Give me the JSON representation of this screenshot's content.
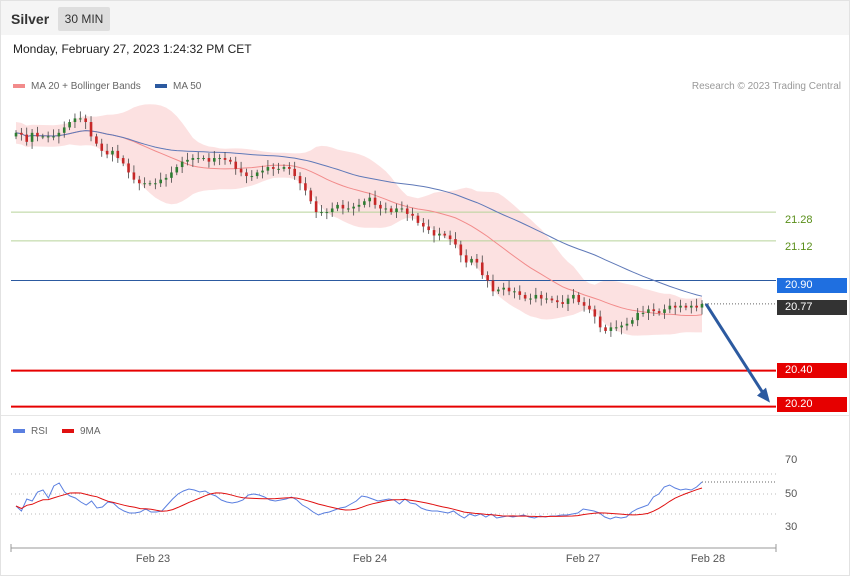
{
  "header": {
    "symbol": "Silver",
    "timeframe": "30 MIN",
    "datetime": "Monday, February 27, 2023 1:24:32 PM CET"
  },
  "legend": {
    "items": [
      {
        "label": "MA 20 + Bollinger Bands",
        "color": "#f28b8b"
      },
      {
        "label": "MA 50",
        "color": "#2c5aa0"
      }
    ],
    "copyright": "Research © 2023 Trading Central"
  },
  "rsi_legend": {
    "items": [
      {
        "label": "RSI",
        "color": "#5a7fe0"
      },
      {
        "label": "9MA",
        "color": "#e01010"
      }
    ]
  },
  "price_labels": [
    {
      "value": "21.28",
      "style": "plain",
      "line_color": "#b6d39a"
    },
    {
      "value": "21.12",
      "style": "plain",
      "line_color": "#b6d39a"
    },
    {
      "value": "20.90",
      "style": "box",
      "color": "#1f6fe0",
      "line_color": "#2c5aa0"
    },
    {
      "value": "20.77",
      "style": "box",
      "color": "#333333",
      "line_color": "#888888"
    },
    {
      "value": "20.40",
      "style": "box",
      "color": "#e60000",
      "line_color": "#e60000"
    },
    {
      "value": "20.20",
      "style": "box",
      "color": "#e60000",
      "line_color": "#e60000"
    }
  ],
  "chart_data": {
    "type": "candlestick",
    "price_axis": {
      "ylim": [
        20.17,
        21.93
      ]
    },
    "candles": {
      "bull_color": "#2e7d32",
      "bear_color": "#c62828"
    },
    "levels": [
      21.28,
      21.12,
      20.9,
      20.4,
      20.2
    ],
    "last_price": 20.77,
    "projection": {
      "from": 20.77,
      "to": 20.2,
      "color": "#2c5aa0"
    },
    "x_labels": [
      "Feb 23",
      "Feb 24",
      "Feb 27",
      "Feb 28"
    ],
    "closes": [
      21.72,
      21.71,
      21.67,
      21.72,
      21.7,
      21.7,
      21.7,
      21.7,
      21.72,
      21.75,
      21.78,
      21.8,
      21.8,
      21.78,
      21.7,
      21.66,
      21.62,
      21.6,
      21.62,
      21.58,
      21.55,
      21.5,
      21.46,
      21.44,
      21.44,
      21.44,
      21.44,
      21.46,
      21.47,
      21.5,
      21.53,
      21.56,
      21.57,
      21.58,
      21.58,
      21.58,
      21.56,
      21.58,
      21.58,
      21.57,
      21.56,
      21.52,
      21.5,
      21.48,
      21.48,
      21.5,
      21.51,
      21.53,
      21.52,
      21.52,
      21.53,
      21.52,
      21.48,
      21.44,
      21.4,
      21.34,
      21.28,
      21.28,
      21.28,
      21.3,
      21.32,
      21.3,
      21.3,
      21.31,
      21.32,
      21.34,
      21.36,
      21.32,
      21.3,
      21.3,
      21.28,
      21.3,
      21.3,
      21.27,
      21.26,
      21.22,
      21.2,
      21.18,
      21.15,
      21.16,
      21.15,
      21.13,
      21.1,
      21.04,
      21.0,
      21.02,
      21.0,
      20.93,
      20.9,
      20.84,
      20.85,
      20.86,
      20.84,
      20.84,
      20.82,
      20.8,
      20.8,
      20.82,
      20.8,
      20.8,
      20.79,
      20.78,
      20.77,
      20.8,
      20.82,
      20.78,
      20.76,
      20.74,
      20.7,
      20.64,
      20.62,
      20.64,
      20.64,
      20.65,
      20.66,
      20.68,
      20.72,
      20.72,
      20.74,
      20.73,
      20.72,
      20.74,
      20.76,
      20.75,
      20.76,
      20.75,
      20.76,
      20.75,
      20.77
    ],
    "rsi": {
      "scale": [
        0,
        100
      ],
      "levels": [
        70,
        50,
        30
      ],
      "ticks": [
        "70",
        "50",
        "30"
      ],
      "rsi_values": [
        38,
        33,
        45,
        43,
        52,
        54,
        46,
        58,
        61,
        52,
        48,
        46,
        42,
        39,
        43,
        36,
        37,
        42,
        41,
        36,
        33,
        31,
        31,
        32,
        35,
        32,
        32,
        33,
        39,
        45,
        50,
        53,
        55,
        54,
        52,
        53,
        50,
        48,
        44,
        42,
        41,
        42,
        44,
        49,
        50,
        49,
        47,
        44,
        43,
        44,
        45,
        47,
        44,
        39,
        36,
        32,
        29,
        31,
        32,
        34,
        36,
        37,
        40,
        43,
        48,
        47,
        45,
        43,
        44,
        45,
        44,
        40,
        45,
        41,
        40,
        36,
        34,
        33,
        33,
        32,
        31,
        33,
        29,
        26,
        30,
        28,
        30,
        27,
        30,
        26,
        27,
        28,
        27,
        28,
        29,
        27,
        26,
        28,
        27,
        28,
        28,
        29,
        29,
        30,
        31,
        35,
        34,
        33,
        31,
        27,
        25,
        27,
        26,
        27,
        32,
        35,
        37,
        39,
        47,
        50,
        57,
        59,
        56,
        54,
        55,
        54,
        57,
        62
      ]
    }
  }
}
